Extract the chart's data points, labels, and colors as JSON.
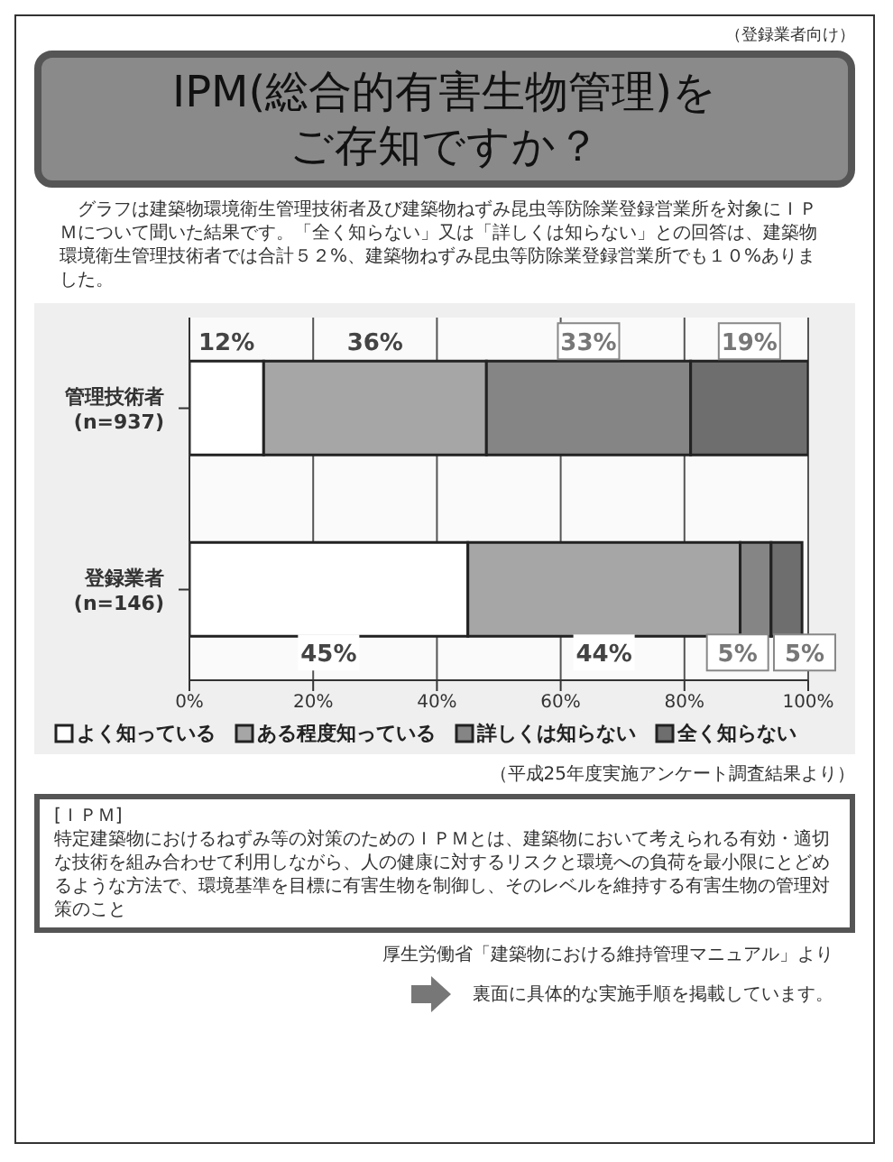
{
  "chart_data": {
    "type": "bar",
    "orientation": "horizontal",
    "stacked": true,
    "title": "IPM(総合的有害生物管理)をご存知ですか？",
    "subtitle": "グラフは建築物環境衛生管理技術者及び建築物ねずみ昆虫等防除業登録営業所を対象にＩＰＭについて聞いた結果です。「全く知らない」又は「詳しくは知らない」との回答は、建築物環境衛生管理技術者では合計５２%、建築物ねずみ昆虫等防除業登録営業所でも１０%ありました。",
    "categories": [
      "管理技術者\n(n=937)",
      "登録業者\n(n=146)"
    ],
    "series": [
      {
        "name": "よく知っている",
        "color": "#ffffff",
        "values": [
          12,
          45
        ],
        "value_labels": [
          "12%",
          "45%"
        ]
      },
      {
        "name": "ある程度知っている",
        "color": "#a6a6a6",
        "values": [
          36,
          44
        ],
        "value_labels": [
          "36%",
          "44%"
        ]
      },
      {
        "name": "詳しくは知らない",
        "color": "#858585",
        "values": [
          33,
          5
        ],
        "value_labels": [
          "33%",
          "5%"
        ]
      },
      {
        "name": "全く知らない",
        "color": "#6e6e6e",
        "values": [
          19,
          5
        ],
        "value_labels": [
          "19%",
          "5%"
        ]
      }
    ],
    "xlim": [
      0,
      100
    ],
    "xticks": [
      {
        "value": 0,
        "label": "0%"
      },
      {
        "value": 20,
        "label": "20%"
      },
      {
        "value": 40,
        "label": "40%"
      },
      {
        "value": 60,
        "label": "60%"
      },
      {
        "value": 80,
        "label": "80%"
      },
      {
        "value": 100,
        "label": "100%"
      }
    ],
    "grid": "x",
    "legend": "bottom",
    "annotations": [
      "（登録業者向け）",
      "（平成25年度実施アンケート調査結果より）",
      "[ＩＰＭ]\n特定建築物におけるねずみ等の対策のためのＩＰＭとは、建築物において考えられる有効・適切な技術を組み合わせて利用しながら、人の健康に対するリスクと環境への負荷を最小限にとどめるような方法で、環境基準を目標に有害生物を制御し、そのレベルを維持する有害生物の管理対策のこと",
      "厚生労働省「建築物における維持管理マニュアル」より",
      "裏面に具体的な実施手順を掲載しています。"
    ]
  }
}
